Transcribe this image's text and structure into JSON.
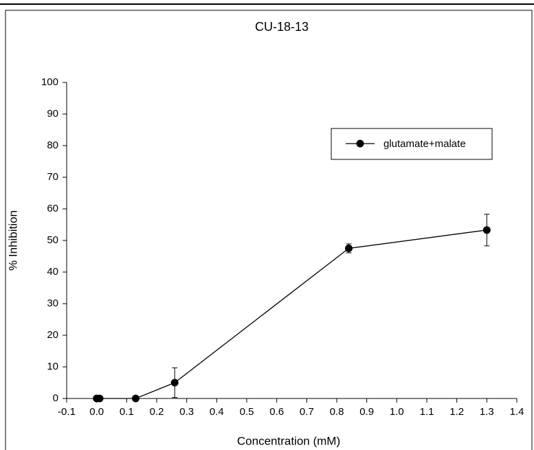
{
  "chart_data": {
    "type": "line",
    "title": "CU-18-13",
    "x_label": "Concentration (mM)",
    "y_label": "% Inhibition",
    "series": [
      {
        "name": "glutamate+malate",
        "color": "#000000",
        "x": [
          0.0,
          0.01,
          0.13,
          0.26,
          0.84,
          1.3
        ],
        "values": [
          0,
          0,
          0,
          5,
          47.5,
          53.3
        ],
        "errors": [
          0,
          0,
          0,
          4.7,
          1.4,
          5
        ]
      }
    ],
    "xlim": [
      -0.1,
      1.4
    ],
    "xticks": [
      -0.1,
      {
        "value": 0,
        "label": "0.0"
      },
      0.1,
      0.2,
      0.3,
      0.4,
      0.5,
      0.6,
      0.7,
      0.8,
      0.9,
      {
        "value": 1,
        "label": "1.0"
      },
      1.1,
      1.2,
      1.3,
      1.4
    ],
    "ylim": [
      0,
      100
    ],
    "yticks": [
      0,
      10,
      20,
      30,
      40,
      50,
      60,
      70,
      80,
      90,
      100
    ],
    "grid": false,
    "legend": "upper-right"
  }
}
